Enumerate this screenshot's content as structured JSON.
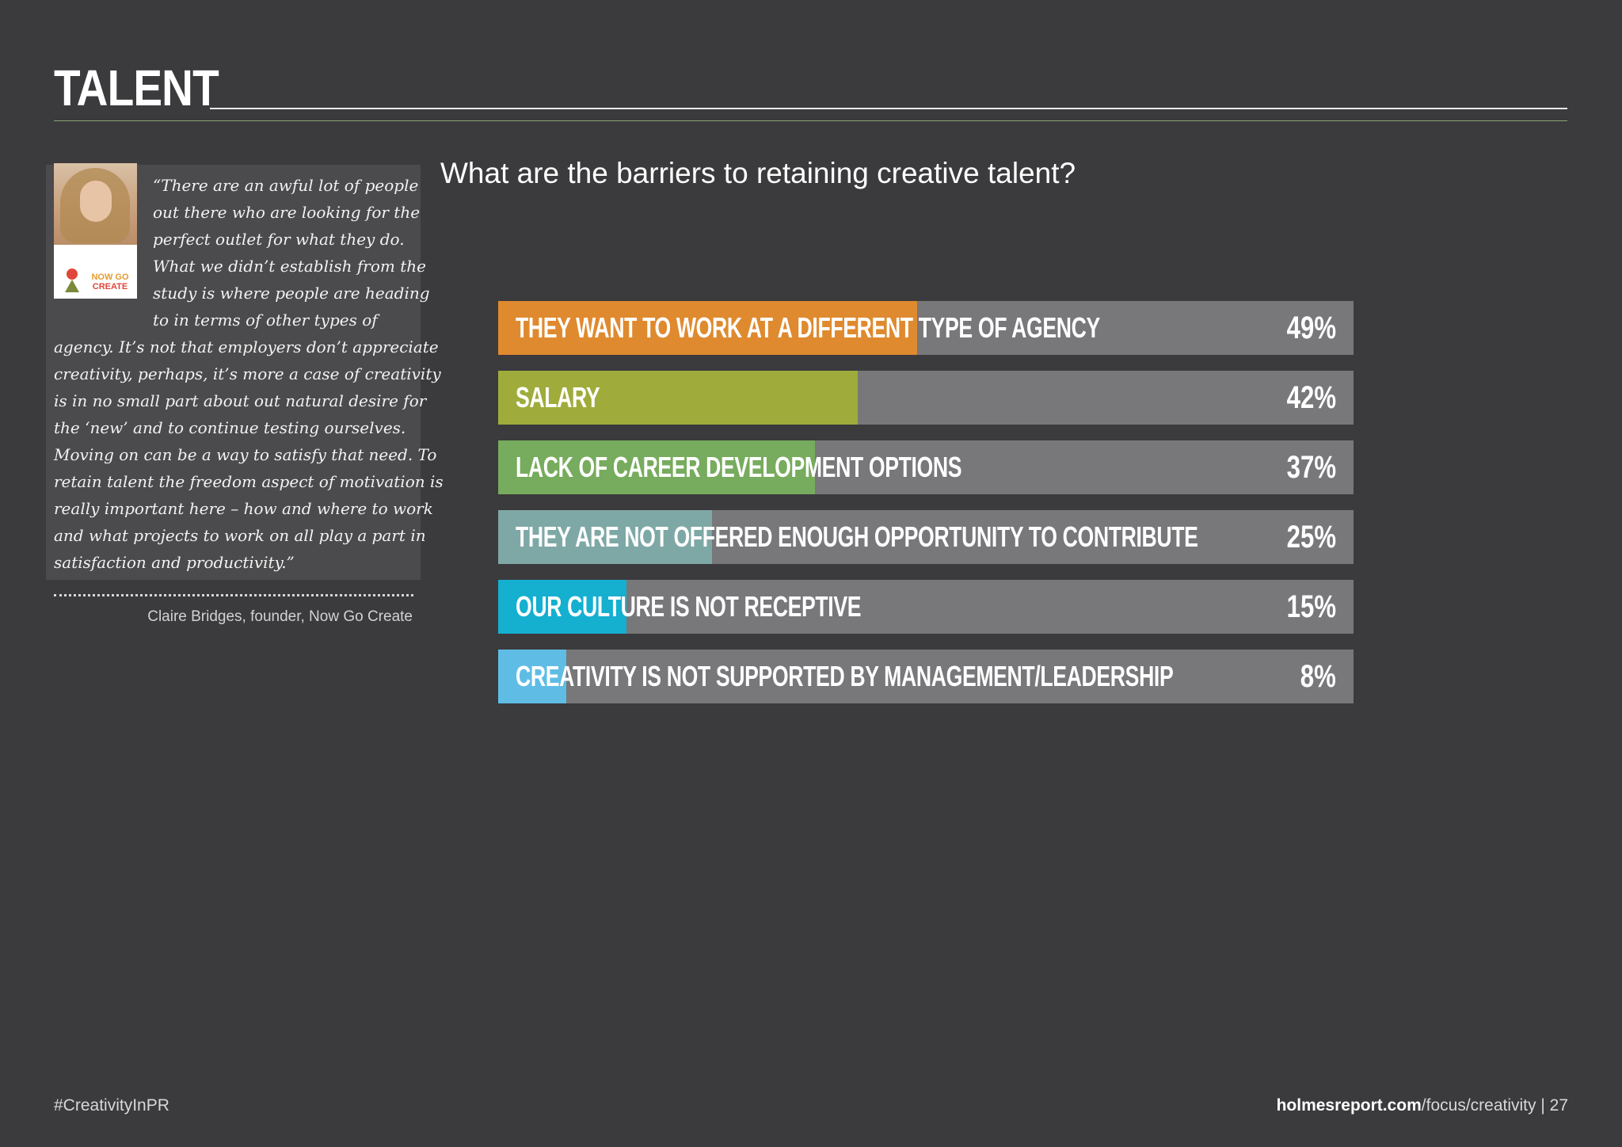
{
  "page": {
    "title": "TALENT",
    "footer_hashtag": "#CreativityInPR",
    "footer_domain": "holmesreport.com",
    "footer_path": "/focus/creativity",
    "footer_separator": " | ",
    "page_number": "27"
  },
  "quote": {
    "logo_line1": "NOW GO",
    "logo_line2": "CREATE",
    "lines": [
      "“There are an awful lot of people",
      "out there who are looking for the",
      "perfect outlet for what they do.",
      "What we didn’t establish from the",
      "study is where people are heading",
      "to in terms of other types of",
      "agency. It’s not that employers don’t appreciate",
      "creativity, perhaps, it’s more a case of creativity",
      "is in no small part about out natural desire for",
      "the ‘new’ and to continue testing ourselves.",
      "Moving on can be a way to satisfy that need. To",
      "retain talent the freedom aspect of motivation is",
      "really important here – how and where to work",
      "and what projects to work on all play a part in",
      "satisfaction and productivity.”"
    ],
    "attribution": "Claire Bridges, founder, Now Go Create"
  },
  "chart_data": {
    "type": "bar",
    "orientation": "horizontal",
    "title": "What are the barriers to retaining creative talent?",
    "xlim": [
      0,
      100
    ],
    "unit": "%",
    "categories": [
      "THEY WANT TO WORK AT A DIFFERENT TYPE OF AGENCY",
      "SALARY",
      "LACK OF CAREER DEVELOPMENT OPTIONS",
      "THEY ARE NOT OFFERED ENOUGH OPPORTUNITY TO CONTRIBUTE",
      "OUR CULTURE IS NOT RECEPTIVE",
      "CREATIVITY IS NOT SUPPORTED BY MANAGEMENT/LEADERSHIP"
    ],
    "values": [
      49,
      42,
      37,
      25,
      15,
      8
    ],
    "value_labels": [
      "49%",
      "42%",
      "37%",
      "25%",
      "15%",
      "8%"
    ],
    "colors": [
      "#df8a2f",
      "#9fac3b",
      "#77ab5d",
      "#7ea8a6",
      "#15afd0",
      "#5fbde5"
    ],
    "track_color": "#78777a",
    "grid": false
  }
}
